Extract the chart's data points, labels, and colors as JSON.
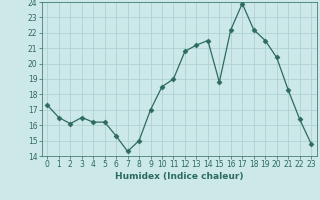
{
  "x": [
    0,
    1,
    2,
    3,
    4,
    5,
    6,
    7,
    8,
    9,
    10,
    11,
    12,
    13,
    14,
    15,
    16,
    17,
    18,
    19,
    20,
    21,
    22,
    23
  ],
  "y": [
    17.3,
    16.5,
    16.1,
    16.5,
    16.2,
    16.2,
    15.3,
    14.3,
    15.0,
    17.0,
    18.5,
    19.0,
    20.8,
    21.2,
    21.5,
    18.8,
    22.2,
    23.9,
    22.2,
    21.5,
    20.4,
    18.3,
    16.4,
    14.8
  ],
  "xlabel": "Humidex (Indice chaleur)",
  "ylim": [
    14,
    24
  ],
  "xlim": [
    -0.5,
    23.5
  ],
  "yticks": [
    14,
    15,
    16,
    17,
    18,
    19,
    20,
    21,
    22,
    23,
    24
  ],
  "xticks": [
    0,
    1,
    2,
    3,
    4,
    5,
    6,
    7,
    8,
    9,
    10,
    11,
    12,
    13,
    14,
    15,
    16,
    17,
    18,
    19,
    20,
    21,
    22,
    23
  ],
  "line_color": "#2d6b5e",
  "marker": "D",
  "marker_size": 2.5,
  "bg_color": "#cce8e8",
  "grid_color": "#aacece",
  "label_fontsize": 6.5,
  "tick_fontsize": 5.5
}
